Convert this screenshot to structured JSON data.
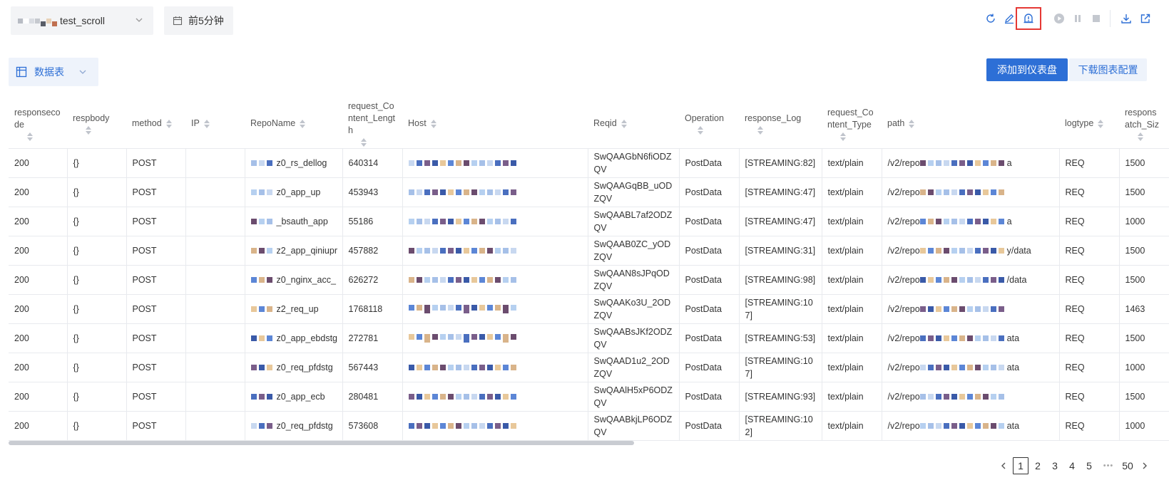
{
  "topbar": {
    "repo_suffix": "test_scroll",
    "time_range": "前5分钟",
    "icons": [
      "refresh-icon",
      "edit-icon",
      "alert-icon",
      "play-icon",
      "pause-icon",
      "stop-icon",
      "download-icon",
      "export-icon"
    ],
    "highlighted_icon": "alert-icon",
    "highlight_color": "#e53935"
  },
  "viewbar": {
    "view_label": "数据表",
    "add_dashboard_label": "添加到仪表盘",
    "download_config_label": "下载图表配置"
  },
  "colors": {
    "primary": "#2d6fd6",
    "select_bg": "#eef3fb"
  },
  "table": {
    "columns": [
      {
        "key": "responsecode",
        "label": "responseco de",
        "lines": [
          "responseco",
          "de"
        ]
      },
      {
        "key": "respbody",
        "label": "respbody",
        "lines": [
          "respbody"
        ]
      },
      {
        "key": "method",
        "label": "method",
        "lines": [
          "method"
        ]
      },
      {
        "key": "ip",
        "label": "IP",
        "lines": [
          "IP"
        ]
      },
      {
        "key": "reponame",
        "label": "RepoName",
        "lines": [
          "RepoName"
        ]
      },
      {
        "key": "request_content_length",
        "label": "request_Co ntent_Lengt h",
        "lines": [
          "request_Co",
          "ntent_Lengt",
          "h"
        ]
      },
      {
        "key": "host",
        "label": "Host",
        "lines": [
          "Host"
        ]
      },
      {
        "key": "reqid",
        "label": "Reqid",
        "lines": [
          "Reqid"
        ]
      },
      {
        "key": "operation",
        "label": "Operation",
        "lines": [
          "Operation"
        ]
      },
      {
        "key": "response_log",
        "label": "response_Log",
        "lines": [
          "response_Log"
        ]
      },
      {
        "key": "request_content_type",
        "label": "request_Co ntent_Type",
        "lines": [
          "request_Co",
          "ntent_Type"
        ]
      },
      {
        "key": "path",
        "label": "path",
        "lines": [
          "path"
        ]
      },
      {
        "key": "logtype",
        "label": "logtype",
        "lines": [
          "logtype"
        ]
      },
      {
        "key": "response_batch_size",
        "label": "respons atch_Siz",
        "lines": [
          "respons",
          "atch_Siz"
        ]
      }
    ],
    "rows": [
      {
        "responsecode": "200",
        "respbody": "{}",
        "method": "POST",
        "ip": "",
        "reponame": "z0_rs_dellog",
        "request_content_length": "640314",
        "reqid": "SwQAAGbN6fiODZQV",
        "operation": "PostData",
        "response_log": "[STREAMING:82]",
        "request_content_type": "text/plain",
        "path_prefix": "/v2/repo",
        "path_suffix": "a",
        "logtype": "REQ",
        "response_batch_size": "1500"
      },
      {
        "responsecode": "200",
        "respbody": "{}",
        "method": "POST",
        "ip": "",
        "reponame": "z0_app_up",
        "request_content_length": "453943",
        "reqid": "SwQAAGqBB_uODZQV",
        "operation": "PostData",
        "response_log": "[STREAMING:47]",
        "request_content_type": "text/plain",
        "path_prefix": "/v2/repo",
        "path_suffix": "",
        "logtype": "REQ",
        "response_batch_size": "1500"
      },
      {
        "responsecode": "200",
        "respbody": "{}",
        "method": "POST",
        "ip": "",
        "reponame": "_bsauth_app",
        "request_content_length": "55186",
        "reqid": "SwQAABL7af2ODZQV",
        "operation": "PostData",
        "response_log": "[STREAMING:47]",
        "request_content_type": "text/plain",
        "path_prefix": "/v2/repo",
        "path_suffix": "a",
        "logtype": "REQ",
        "response_batch_size": "1000"
      },
      {
        "responsecode": "200",
        "respbody": "{}",
        "method": "POST",
        "ip": "",
        "reponame": "z2_app_qiniupr",
        "request_content_length": "457882",
        "reqid": "SwQAAB0ZC_yODZQV",
        "operation": "PostData",
        "response_log": "[STREAMING:31]",
        "request_content_type": "text/plain",
        "path_prefix": "/v2/repo",
        "path_suffix": "y/data",
        "logtype": "REQ",
        "response_batch_size": "1500"
      },
      {
        "responsecode": "200",
        "respbody": "{}",
        "method": "POST",
        "ip": "",
        "reponame": "z0_nginx_acc_",
        "request_content_length": "626272",
        "reqid": "SwQAAN8sJPqODZQV",
        "operation": "PostData",
        "response_log": "[STREAMING:98]",
        "request_content_type": "text/plain",
        "path_prefix": "/v2/repo",
        "path_suffix": "/data",
        "logtype": "REQ",
        "response_batch_size": "1500"
      },
      {
        "responsecode": "200",
        "respbody": "{}",
        "method": "POST",
        "ip": "",
        "reponame": "z2_req_up",
        "request_content_length": "1768118",
        "reqid": "SwQAAKo3U_2ODZQV",
        "operation": "PostData",
        "response_log": "[STREAMING:107]",
        "request_content_type": "text/plain",
        "path_prefix": "/v2/repo",
        "path_suffix": "",
        "logtype": "REQ",
        "response_batch_size": "1463"
      },
      {
        "responsecode": "200",
        "respbody": "{}",
        "method": "POST",
        "ip": "",
        "reponame": "z0_app_ebdstg",
        "request_content_length": "272781",
        "reqid": "SwQAABsJKf2ODZQV",
        "operation": "PostData",
        "response_log": "[STREAMING:53]",
        "request_content_type": "text/plain",
        "path_prefix": "/v2/repo",
        "path_suffix": "ata",
        "logtype": "REQ",
        "response_batch_size": "1500"
      },
      {
        "responsecode": "200",
        "respbody": "{}",
        "method": "POST",
        "ip": "",
        "reponame": "z0_req_pfdstg",
        "request_content_length": "567443",
        "reqid": "SwQAAD1u2_2ODZQV",
        "operation": "PostData",
        "response_log": "[STREAMING:107]",
        "request_content_type": "text/plain",
        "path_prefix": "/v2/repo",
        "path_suffix": "ata",
        "logtype": "REQ",
        "response_batch_size": "1000"
      },
      {
        "responsecode": "200",
        "respbody": "{}",
        "method": "POST",
        "ip": "",
        "reponame": "z0_app_ecb",
        "request_content_length": "280481",
        "reqid": "SwQAAlH5xP6ODZQV",
        "operation": "PostData",
        "response_log": "[STREAMING:93]",
        "request_content_type": "text/plain",
        "path_prefix": "/v2/repo",
        "path_suffix": "",
        "logtype": "REQ",
        "response_batch_size": "1500"
      },
      {
        "responsecode": "200",
        "respbody": "{}",
        "method": "POST",
        "ip": "",
        "reponame": "z0_req_pfdstg",
        "request_content_length": "573608",
        "reqid": "SwQAABkjLP6ODZQV",
        "operation": "PostData",
        "response_log": "[STREAMING:102]",
        "request_content_type": "text/plain",
        "path_prefix": "/v2/repo",
        "path_suffix": "ata",
        "logtype": "REQ",
        "response_batch_size": "1000"
      }
    ]
  },
  "pagination": {
    "prev": "<",
    "pages": [
      "1",
      "2",
      "3",
      "4",
      "5"
    ],
    "current": "1",
    "ellipsis": "•••",
    "last": "50",
    "next": ">"
  }
}
